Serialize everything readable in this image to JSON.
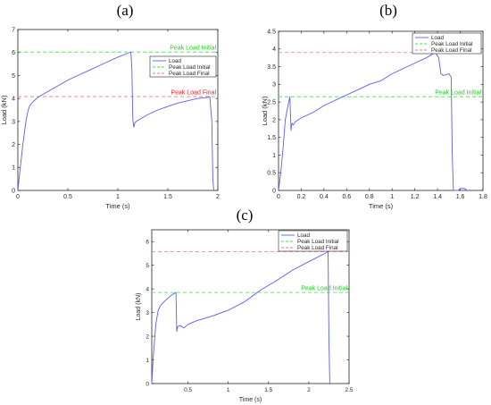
{
  "chart_data": [
    {
      "type": "line",
      "panel_label": "(a)",
      "xlabel": "Time (s)",
      "ylabel": "Load (kN)",
      "xlim": [
        0,
        2
      ],
      "ylim": [
        0,
        7
      ],
      "xticks": [
        0,
        0.5,
        1,
        1.5,
        2
      ],
      "xtick_labels": [
        "0",
        "0.5",
        "1",
        "1.5",
        "2"
      ],
      "yticks": [
        0,
        1,
        2,
        3,
        4,
        5,
        6,
        7
      ],
      "ytick_labels": [
        "0",
        "1",
        "2",
        "3",
        "4",
        "5",
        "6",
        "7"
      ],
      "grid": false,
      "legend_position": "right",
      "legend": [
        "Load",
        "Peak Load Initial",
        "Peak Load Final"
      ],
      "series": [
        {
          "name": "Load",
          "color": "#5c5cf5",
          "x": [
            0,
            0.02,
            0.05,
            0.08,
            0.1,
            0.12,
            0.15,
            0.2,
            0.3,
            0.4,
            0.5,
            0.6,
            0.7,
            0.8,
            0.9,
            1.0,
            1.1,
            1.13,
            1.14,
            1.15,
            1.16,
            1.17,
            1.2,
            1.3,
            1.4,
            1.5,
            1.6,
            1.7,
            1.8,
            1.9,
            1.92,
            1.94,
            1.95,
            1.96
          ],
          "y": [
            0,
            0.8,
            2.0,
            3.0,
            3.45,
            3.7,
            3.85,
            4.05,
            4.3,
            4.55,
            4.8,
            5.0,
            5.2,
            5.4,
            5.6,
            5.8,
            5.97,
            6.02,
            5.3,
            3.1,
            2.75,
            2.95,
            3.05,
            3.3,
            3.5,
            3.65,
            3.8,
            3.9,
            4.0,
            4.05,
            4.08,
            3.0,
            0.5,
            0
          ]
        }
      ],
      "reference_lines": [
        {
          "name": "Peak Load Initial",
          "y": 6.02,
          "color": "#3ee83e",
          "text_color": "#22d022"
        },
        {
          "name": "Peak Load Final",
          "y": 4.08,
          "color": "#f07878",
          "text_color": "#ee1a1a"
        }
      ]
    },
    {
      "type": "line",
      "panel_label": "(b)",
      "xlabel": "Time (s)",
      "ylabel": "Load (kN)",
      "xlim": [
        0,
        1.8
      ],
      "ylim": [
        0,
        4.5
      ],
      "xticks": [
        0,
        0.2,
        0.4,
        0.6,
        0.8,
        1,
        1.2,
        1.4,
        1.6,
        1.8
      ],
      "xtick_labels": [
        "0",
        "0.2",
        "0.4",
        "0.6",
        "0.8",
        "1",
        "1.2",
        "1.4",
        "1.6",
        "1.8"
      ],
      "yticks": [
        0,
        0.5,
        1,
        1.5,
        2,
        2.5,
        3,
        3.5,
        4,
        4.5
      ],
      "ytick_labels": [
        "0",
        "0.5",
        "1",
        "1.5",
        "2",
        "2.5",
        "3",
        "3.5",
        "4",
        "4.5"
      ],
      "grid": false,
      "legend_position": "top-right",
      "legend": [
        "Load",
        "Peak Load Initial",
        "Peak Load Final"
      ],
      "series": [
        {
          "name": "Load",
          "color": "#5c5cf5",
          "x": [
            0,
            0.02,
            0.04,
            0.06,
            0.08,
            0.1,
            0.11,
            0.115,
            0.12,
            0.13,
            0.15,
            0.2,
            0.3,
            0.4,
            0.5,
            0.6,
            0.7,
            0.8,
            0.9,
            1.0,
            1.1,
            1.2,
            1.3,
            1.38,
            1.41,
            1.43,
            1.45,
            1.5,
            1.52,
            1.53,
            1.54,
            1.56,
            1.58,
            1.6,
            1.62,
            1.64,
            1.66
          ],
          "y": [
            0,
            0.5,
            1.2,
            2.0,
            2.35,
            2.65,
            1.7,
            1.85,
            1.9,
            1.85,
            1.95,
            2.05,
            2.2,
            2.4,
            2.55,
            2.7,
            2.85,
            3.0,
            3.1,
            3.3,
            3.45,
            3.6,
            3.75,
            3.9,
            3.75,
            3.3,
            3.25,
            3.3,
            3.2,
            1.0,
            0,
            0,
            0,
            0.05,
            0.06,
            0.05,
            0
          ]
        }
      ],
      "reference_lines": [
        {
          "name": "Peak Load Initial",
          "y": 2.65,
          "color": "#3ee83e",
          "text_color": "#22d022"
        },
        {
          "name": "Peak Load Final",
          "y": 3.9,
          "color": "#f07878",
          "text_color": "#ee1a1a"
        }
      ]
    },
    {
      "type": "line",
      "panel_label": "(c)",
      "xlabel": "Time (s)",
      "ylabel": "Load (kN)",
      "xlim": [
        0.05,
        2.5
      ],
      "ylim": [
        0,
        6.5
      ],
      "xticks": [
        0.5,
        1,
        1.5,
        2,
        2.5
      ],
      "xtick_labels": [
        "0.5",
        "1",
        "1.5",
        "2",
        "2.5"
      ],
      "yticks": [
        0,
        1,
        2,
        3,
        4,
        5,
        6
      ],
      "ytick_labels": [
        "0",
        "1",
        "2",
        "3",
        "4",
        "5",
        "6"
      ],
      "grid": false,
      "legend_position": "top-right",
      "legend": [
        "Load",
        "Peak Load Initial",
        "Peak Load Final"
      ],
      "series": [
        {
          "name": "Load",
          "color": "#5c5cf5",
          "x": [
            0.05,
            0.07,
            0.1,
            0.13,
            0.16,
            0.2,
            0.25,
            0.3,
            0.35,
            0.36,
            0.37,
            0.4,
            0.45,
            0.5,
            0.6,
            0.8,
            1.0,
            1.2,
            1.4,
            1.6,
            1.8,
            2.0,
            2.2,
            2.24,
            2.25,
            2.26
          ],
          "y": [
            0.0,
            1.2,
            2.5,
            3.1,
            3.3,
            3.45,
            3.6,
            3.75,
            3.85,
            2.2,
            2.4,
            2.45,
            2.35,
            2.5,
            2.65,
            2.85,
            3.1,
            3.45,
            3.95,
            4.35,
            4.8,
            5.15,
            5.5,
            5.58,
            2.0,
            0
          ]
        }
      ],
      "reference_lines": [
        {
          "name": "Peak Load Initial",
          "y": 3.85,
          "color": "#3ee83e",
          "text_color": "#22d022"
        },
        {
          "name": "Peak Load Final",
          "y": 5.58,
          "color": "#f07878",
          "text_color": "#ee1a1a"
        }
      ]
    }
  ]
}
